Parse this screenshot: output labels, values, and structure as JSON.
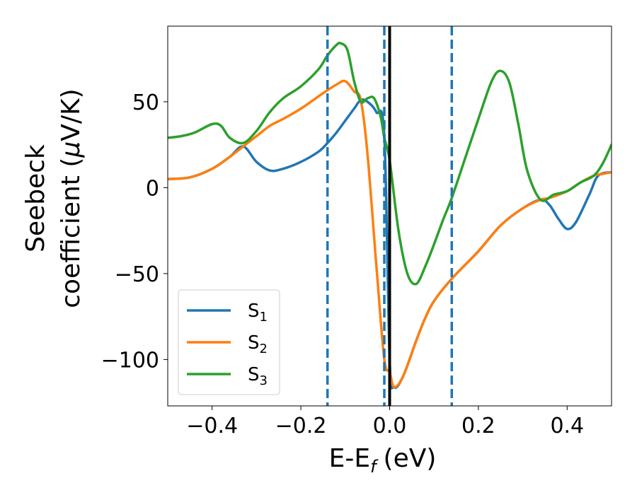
{
  "chart_data": {
    "type": "line",
    "title": "",
    "xlabel": "E-E",
    "xlabel_sub": "f",
    "xlabel_unit": "(eV)",
    "ylabel_line1": "Seebeck",
    "ylabel_line2": "coefficient  (",
    "ylabel_mu": "μ",
    "ylabel_unit": "V/K)",
    "xlim": [
      -0.5,
      0.5
    ],
    "ylim": [
      -127,
      94
    ],
    "x_ticks": [
      -0.4,
      -0.2,
      0.0,
      0.2,
      0.4
    ],
    "x_tick_labels": [
      "−0.4",
      "−0.2",
      "0.0",
      "0.2",
      "0.4"
    ],
    "y_ticks": [
      -100,
      -50,
      0,
      50
    ],
    "y_tick_labels": [
      "−100",
      "−50",
      "0",
      "50"
    ],
    "grid": false,
    "legend_position": "lower-left",
    "vertical_lines": [
      {
        "x": -0.14,
        "style": "dashed",
        "color": "#1f77b4"
      },
      {
        "x": -0.012,
        "style": "dashed",
        "color": "#1f77b4"
      },
      {
        "x": 0.14,
        "style": "dashed",
        "color": "#1f77b4"
      },
      {
        "x": 0.0,
        "style": "solid",
        "color": "#000000"
      }
    ],
    "series": [
      {
        "name": "S",
        "sub": "1",
        "color": "#1f77b4",
        "x": [
          -0.5,
          -0.45,
          -0.4,
          -0.36,
          -0.33,
          -0.3,
          -0.27,
          -0.24,
          -0.2,
          -0.16,
          -0.14,
          -0.12,
          -0.1,
          -0.08,
          -0.065,
          -0.05,
          -0.03,
          -0.012,
          0.0,
          0.01,
          0.03,
          0.06,
          0.08,
          0.1,
          0.14,
          0.2,
          0.25,
          0.3,
          0.34,
          0.36,
          0.38,
          0.4,
          0.42,
          0.45,
          0.47,
          0.5
        ],
        "y": [
          5,
          6,
          11,
          18,
          24,
          15,
          10,
          11,
          15,
          21,
          26,
          32,
          39,
          46,
          51,
          50,
          44,
          30,
          -100,
          -116,
          -110,
          -89,
          -76,
          -66,
          -53,
          -37,
          -22,
          -12,
          -7,
          -10,
          -18,
          -24,
          -20,
          -4,
          7,
          9
        ]
      },
      {
        "name": "S",
        "sub": "2",
        "color": "#ff7f0e",
        "x": [
          -0.5,
          -0.45,
          -0.4,
          -0.36,
          -0.33,
          -0.3,
          -0.27,
          -0.24,
          -0.2,
          -0.15,
          -0.12,
          -0.1,
          -0.08,
          -0.065,
          -0.05,
          -0.03,
          -0.012,
          0.0,
          0.01,
          0.03,
          0.06,
          0.08,
          0.1,
          0.14,
          0.2,
          0.25,
          0.3,
          0.34,
          0.36,
          0.4,
          0.43,
          0.46,
          0.48,
          0.5
        ],
        "y": [
          5,
          6,
          11,
          18,
          24,
          30,
          36,
          40,
          46,
          55,
          60,
          62,
          56,
          51,
          20,
          -45,
          -100,
          -107,
          -116,
          -110,
          -89,
          -76,
          -66,
          -53,
          -37,
          -22,
          -12,
          -7,
          -6,
          -2,
          3,
          7,
          8,
          9
        ]
      },
      {
        "name": "S",
        "sub": "3",
        "color": "#2ca02c",
        "x": [
          -0.5,
          -0.47,
          -0.44,
          -0.4,
          -0.38,
          -0.36,
          -0.33,
          -0.3,
          -0.27,
          -0.24,
          -0.2,
          -0.16,
          -0.14,
          -0.12,
          -0.11,
          -0.095,
          -0.08,
          -0.065,
          -0.05,
          -0.035,
          -0.02,
          -0.012,
          0.0,
          0.02,
          0.04,
          0.06,
          0.08,
          0.1,
          0.12,
          0.14,
          0.17,
          0.2,
          0.23,
          0.25,
          0.27,
          0.29,
          0.31,
          0.34,
          0.37,
          0.4,
          0.43,
          0.46,
          0.48,
          0.5
        ],
        "y": [
          29,
          30,
          32,
          37,
          36,
          29,
          26,
          33,
          44,
          52,
          59,
          69,
          77,
          83,
          84,
          80,
          62,
          50,
          52,
          52,
          41,
          29,
          16,
          -25,
          -50,
          -56,
          -46,
          -33,
          -19,
          -6,
          17,
          40,
          62,
          68,
          61,
          37,
          10,
          -7,
          -4,
          -2,
          3,
          7,
          14,
          25
        ]
      }
    ]
  }
}
